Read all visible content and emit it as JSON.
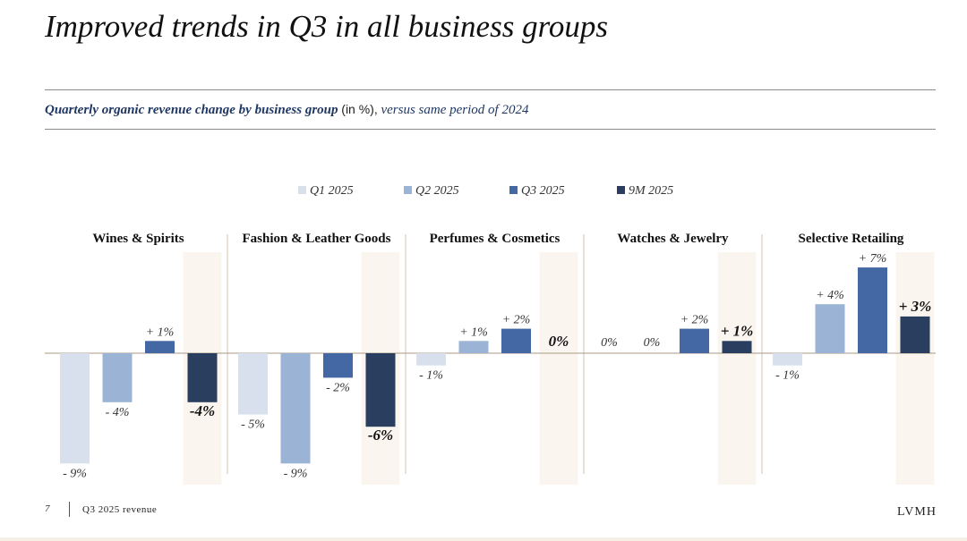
{
  "page": {
    "title": "Improved trends in Q3 in all business groups",
    "subtitle_bold": "Quarterly organic revenue change by business group",
    "subtitle_unit": "(in %),",
    "subtitle_italic": "versus same period of 2024",
    "footer_page": "7",
    "footer_label": "Q3 2025 revenue",
    "logo": "LVMH"
  },
  "colors": {
    "q1": "#d7e0ec",
    "q2": "#9bb3d4",
    "q3": "#4468a3",
    "nine_m": "#2a3f5f",
    "highlight_band": "#fbf5f0",
    "divider": "#cfc3b2",
    "baseline": "#a89a85"
  },
  "chart_data": {
    "type": "bar",
    "title": "Quarterly organic revenue change by business group (in %), versus same period of 2024",
    "ylim": [
      -10,
      8
    ],
    "legend_placement": "top-center",
    "grid": false,
    "series": [
      {
        "name": "Q1 2025",
        "color_key": "q1"
      },
      {
        "name": "Q2 2025",
        "color_key": "q2"
      },
      {
        "name": "Q3 2025",
        "color_key": "q3"
      },
      {
        "name": "9M 2025",
        "color_key": "nine_m"
      }
    ],
    "groups": [
      {
        "name": "Wines & Spirits",
        "values": [
          -9,
          -4,
          1,
          -4
        ],
        "labels": [
          "- 9%",
          "- 4%",
          "+ 1%",
          "-4%"
        ]
      },
      {
        "name": "Fashion & Leather Goods",
        "values": [
          -5,
          -9,
          -2,
          -6
        ],
        "labels": [
          "- 5%",
          "- 9%",
          "- 2%",
          "-6%"
        ]
      },
      {
        "name": "Perfumes & Cosmetics",
        "values": [
          -1,
          1,
          2,
          0
        ],
        "labels": [
          "- 1%",
          "+ 1%",
          "+ 2%",
          "0%"
        ]
      },
      {
        "name": "Watches & Jewelry",
        "values": [
          0,
          0,
          2,
          1
        ],
        "labels": [
          "0%",
          "0%",
          "+ 2%",
          "+ 1%"
        ]
      },
      {
        "name": "Selective Retailing",
        "values": [
          -1,
          4,
          7,
          3
        ],
        "labels": [
          "- 1%",
          "+ 4%",
          "+ 7%",
          "+ 3%"
        ]
      }
    ]
  }
}
